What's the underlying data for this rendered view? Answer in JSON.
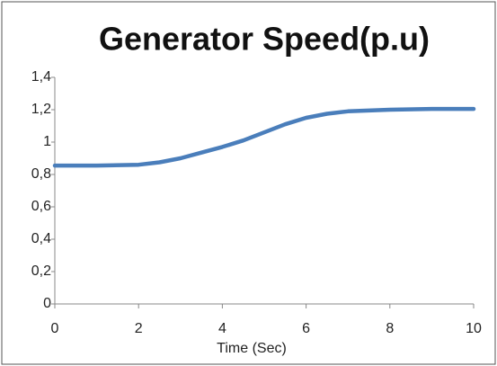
{
  "chart_data": {
    "type": "line",
    "title": "Generator Speed(p.u)",
    "x_label": "Time (Sec)",
    "x": [
      0,
      1,
      2,
      2.5,
      3,
      3.5,
      4,
      4.5,
      5,
      5.5,
      6,
      6.5,
      7,
      7.5,
      8,
      9,
      10
    ],
    "series": [
      {
        "name": "Generator Speed",
        "color": "#4a7ebb",
        "values": [
          0.855,
          0.855,
          0.86,
          0.875,
          0.9,
          0.935,
          0.97,
          1.01,
          1.06,
          1.11,
          1.15,
          1.175,
          1.19,
          1.195,
          1.2,
          1.205,
          1.205
        ]
      }
    ],
    "xlim": [
      0,
      10
    ],
    "xticks": [
      0,
      2,
      4,
      6,
      8,
      10
    ],
    "ylim": [
      0,
      1.4
    ],
    "yticks": [
      0,
      {
        "value": 0.2,
        "label": "0,2"
      },
      {
        "value": 0.4,
        "label": "0,4"
      },
      {
        "value": 0.6,
        "label": "0,6"
      },
      {
        "value": 0.8,
        "label": "0,8"
      },
      1,
      {
        "value": 1.2,
        "label": "1,2"
      },
      {
        "value": 1.4,
        "label": "1,4"
      }
    ],
    "grid": false
  }
}
